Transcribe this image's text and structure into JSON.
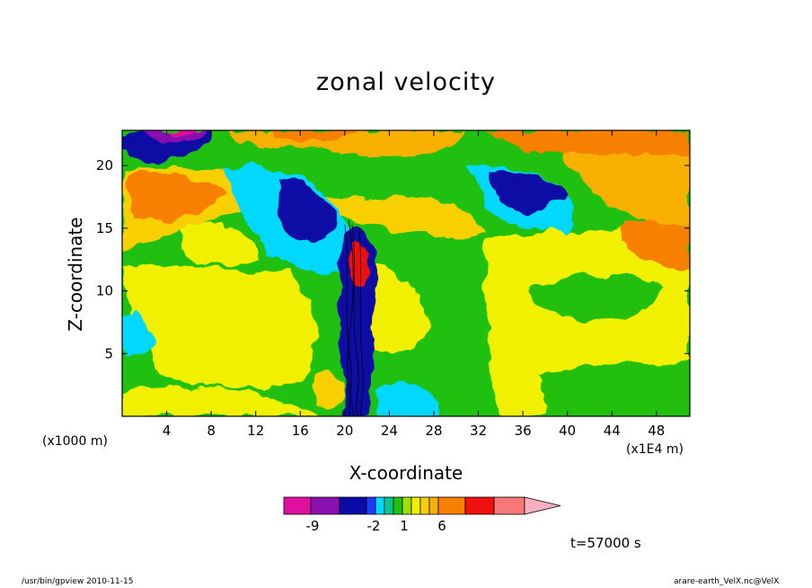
{
  "chart_data": {
    "type": "heatmap",
    "subtype": "filled-contour",
    "title": "zonal velocity",
    "xlabel": "X-coordinate",
    "ylabel": "Z-coordinate",
    "x_unit_left": "(x1000 m)",
    "x_unit_right": "(x1E4 m)",
    "xlim": [
      0,
      51
    ],
    "ylim": [
      0,
      22.8
    ],
    "xticks": [
      "4",
      "8",
      "12",
      "16",
      "20",
      "24",
      "28",
      "32",
      "36",
      "40",
      "44",
      "48"
    ],
    "xtick_values": [
      4,
      8,
      12,
      16,
      20,
      24,
      28,
      32,
      36,
      40,
      44,
      48
    ],
    "yticks": [
      "5",
      "10",
      "15",
      "20"
    ],
    "ytick_values": [
      5,
      10,
      15,
      20
    ],
    "grid": false,
    "colorbar": {
      "labels": [
        "-9",
        "-2",
        "1",
        "6"
      ],
      "colors": [
        "#e0109e",
        "#8a10b0",
        "#0a0aa6",
        "#1a3cff",
        "#00d8ff",
        "#00c88c",
        "#20c010",
        "#a0e000",
        "#f0f000",
        "#f8d000",
        "#f8b000",
        "#f88000",
        "#f01010",
        "#f87878",
        "#f8b0c0"
      ]
    },
    "annotation": "t=57000 s"
  },
  "footer": {
    "left": "/usr/bin/gpview  2010-11-15",
    "right": "arare-earth_VelX.nc@VelX"
  }
}
